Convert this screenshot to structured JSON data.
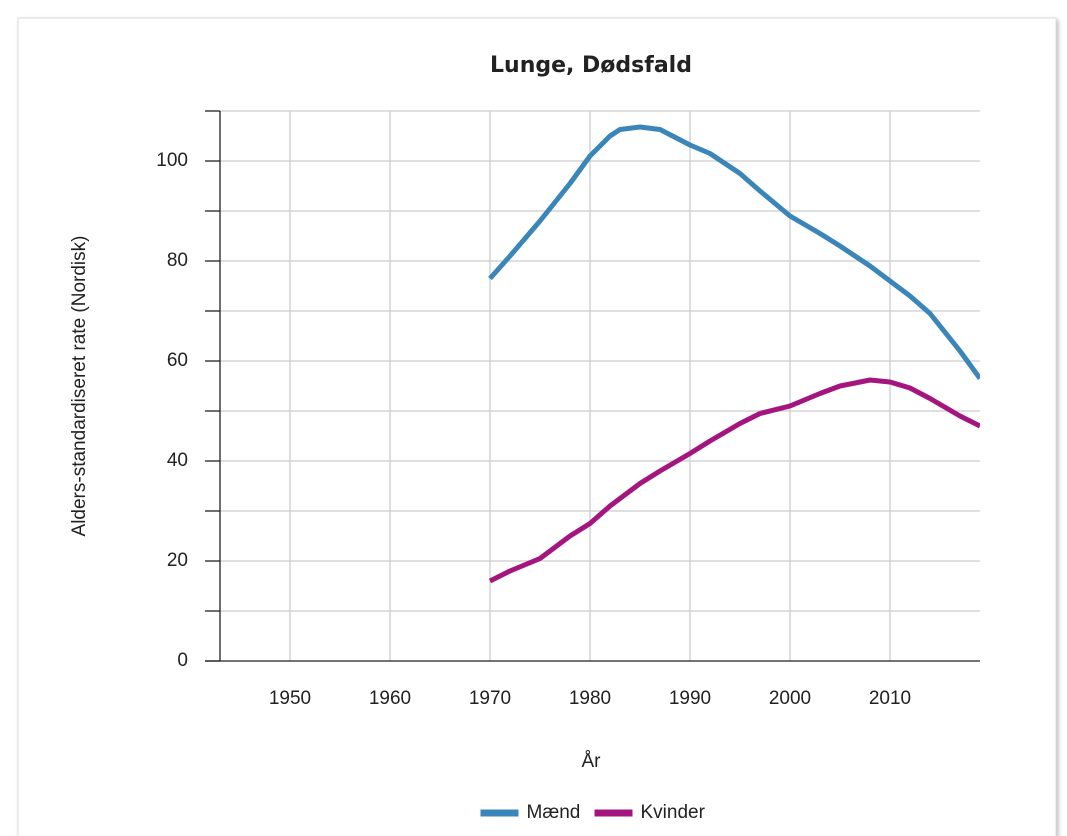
{
  "chart_data": {
    "type": "line",
    "title": "Lunge, Dødsfald",
    "xlabel": "År",
    "ylabel": "Alders-standardiseret rate (Nordisk)",
    "x": [
      1970,
      1972,
      1975,
      1978,
      1980,
      1982,
      1983,
      1985,
      1987,
      1990,
      1992,
      1995,
      1997,
      2000,
      2003,
      2005,
      2008,
      2010,
      2012,
      2014,
      2017,
      2019
    ],
    "series": [
      {
        "name": "Mænd",
        "color": "#3a86b8",
        "values": [
          76.5,
          81,
          88,
          95.5,
          101,
          105,
          106.3,
          106.8,
          106.3,
          103.2,
          101.5,
          97.5,
          94,
          89,
          85.5,
          83,
          79,
          76,
          73,
          69.5,
          62,
          56.5
        ]
      },
      {
        "name": "Kvinder",
        "color": "#a4157f",
        "values": [
          16,
          18,
          20.5,
          25,
          27.5,
          31,
          32.5,
          35.5,
          38,
          41.5,
          44,
          47.5,
          49.5,
          51,
          53.5,
          55,
          56.2,
          55.8,
          54.6,
          52.5,
          49,
          47
        ]
      }
    ],
    "xlim": [
      1943,
      2019
    ],
    "xticks": [
      1950,
      1960,
      1970,
      1980,
      1990,
      2000,
      2010
    ],
    "ylim": [
      0,
      110
    ],
    "yticks": [
      0,
      20,
      40,
      60,
      80,
      100
    ],
    "yminorticks": [
      10,
      30,
      50,
      70,
      90,
      110
    ],
    "grid": true,
    "legend": "bottom"
  }
}
